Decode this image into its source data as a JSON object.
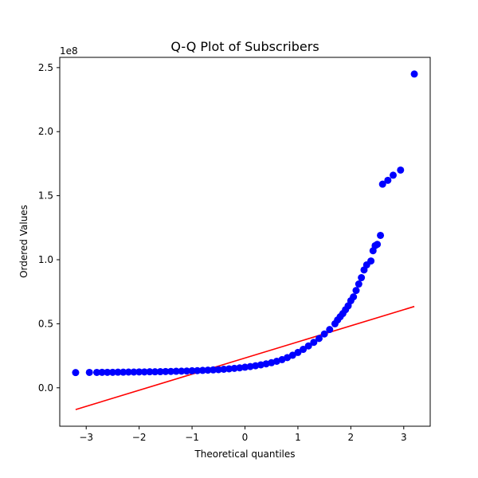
{
  "chart_data": {
    "type": "scatter",
    "title": "Q-Q Plot of Subscribers",
    "xlabel": "Theoretical quantiles",
    "ylabel": "Ordered Values",
    "y_offset_label": "1e8",
    "xlim": [
      -3.5,
      3.5
    ],
    "ylim": [
      -0.3,
      2.58
    ],
    "xticks": [
      -3,
      -2,
      -1,
      0,
      1,
      2,
      3
    ],
    "xtick_labels": [
      "−3",
      "−2",
      "−1",
      "0",
      "1",
      "2",
      "3"
    ],
    "yticks": [
      0.0,
      0.5,
      1.0,
      1.5,
      2.0,
      2.5
    ],
    "ytick_labels": [
      "0.0",
      "0.5",
      "1.0",
      "1.5",
      "2.0",
      "2.5"
    ],
    "grid": false,
    "legend": "none",
    "series": [
      {
        "kind": "scatter",
        "color": "#0000ff",
        "points": [
          [
            -3.2,
            0.119
          ],
          [
            -2.94,
            0.12
          ],
          [
            -2.8,
            0.12
          ],
          [
            -2.7,
            0.121
          ],
          [
            -2.6,
            0.121
          ],
          [
            -2.5,
            0.121
          ],
          [
            -2.4,
            0.122
          ],
          [
            -2.3,
            0.122
          ],
          [
            -2.2,
            0.123
          ],
          [
            -2.1,
            0.123
          ],
          [
            -2.0,
            0.124
          ],
          [
            -1.9,
            0.124
          ],
          [
            -1.8,
            0.125
          ],
          [
            -1.7,
            0.125
          ],
          [
            -1.6,
            0.126
          ],
          [
            -1.5,
            0.127
          ],
          [
            -1.4,
            0.128
          ],
          [
            -1.3,
            0.129
          ],
          [
            -1.2,
            0.13
          ],
          [
            -1.1,
            0.131
          ],
          [
            -1.0,
            0.133
          ],
          [
            -0.9,
            0.134
          ],
          [
            -0.8,
            0.136
          ],
          [
            -0.7,
            0.138
          ],
          [
            -0.6,
            0.14
          ],
          [
            -0.5,
            0.142
          ],
          [
            -0.4,
            0.145
          ],
          [
            -0.3,
            0.148
          ],
          [
            -0.2,
            0.152
          ],
          [
            -0.1,
            0.156
          ],
          [
            0.0,
            0.161
          ],
          [
            0.1,
            0.166
          ],
          [
            0.2,
            0.172
          ],
          [
            0.3,
            0.179
          ],
          [
            0.4,
            0.187
          ],
          [
            0.5,
            0.196
          ],
          [
            0.6,
            0.207
          ],
          [
            0.7,
            0.22
          ],
          [
            0.8,
            0.236
          ],
          [
            0.9,
            0.254
          ],
          [
            1.0,
            0.276
          ],
          [
            1.1,
            0.3
          ],
          [
            1.2,
            0.327
          ],
          [
            1.3,
            0.355
          ],
          [
            1.4,
            0.385
          ],
          [
            1.5,
            0.42
          ],
          [
            1.6,
            0.455
          ],
          [
            1.7,
            0.5
          ],
          [
            1.75,
            0.53
          ],
          [
            1.8,
            0.555
          ],
          [
            1.85,
            0.58
          ],
          [
            1.9,
            0.61
          ],
          [
            1.95,
            0.64
          ],
          [
            2.0,
            0.68
          ],
          [
            2.05,
            0.71
          ],
          [
            2.1,
            0.76
          ],
          [
            2.15,
            0.81
          ],
          [
            2.2,
            0.86
          ],
          [
            2.25,
            0.92
          ],
          [
            2.3,
            0.96
          ],
          [
            2.38,
            0.99
          ],
          [
            2.42,
            1.07
          ],
          [
            2.46,
            1.11
          ],
          [
            2.5,
            1.12
          ],
          [
            2.56,
            1.19
          ],
          [
            2.6,
            1.59
          ],
          [
            2.7,
            1.62
          ],
          [
            2.8,
            1.66
          ],
          [
            2.94,
            1.7
          ],
          [
            3.2,
            2.45
          ]
        ]
      },
      {
        "kind": "line",
        "color": "#ff0000",
        "points": [
          [
            -3.2,
            -0.17
          ],
          [
            3.2,
            0.635
          ]
        ]
      }
    ]
  }
}
